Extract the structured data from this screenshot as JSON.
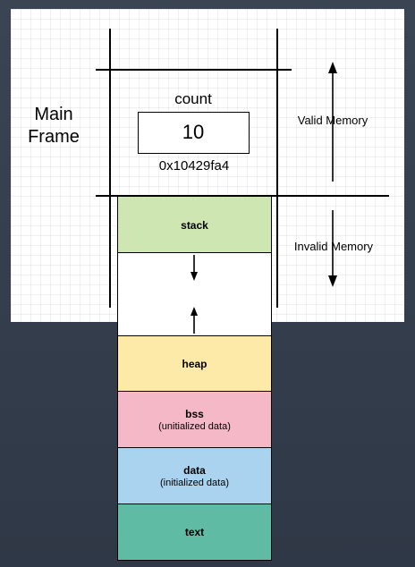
{
  "labels": {
    "main_frame_line1": "Main",
    "main_frame_line2": "Frame",
    "variable_name": "count",
    "variable_value": "10",
    "variable_address": "0x10429fa4",
    "valid_memory": "Valid Memory",
    "invalid_memory": "Invalid Memory"
  },
  "segments": [
    {
      "id": "stack",
      "title": "stack",
      "subtitle": "",
      "color": "#cde6b2"
    },
    {
      "id": "free",
      "title": "",
      "subtitle": "",
      "color": "#ffffff"
    },
    {
      "id": "heap",
      "title": "heap",
      "subtitle": "",
      "color": "#fde9a8"
    },
    {
      "id": "bss",
      "title": "bss",
      "subtitle": "(unitialized data)",
      "color": "#f4b8c6"
    },
    {
      "id": "data",
      "title": "data",
      "subtitle": "(initialized data)",
      "color": "#a9d3ef"
    },
    {
      "id": "text",
      "title": "text",
      "subtitle": "",
      "color": "#5fbba4"
    }
  ],
  "colors": {
    "background": "#343d4b",
    "panel": "#ffffff",
    "line": "#000000"
  }
}
